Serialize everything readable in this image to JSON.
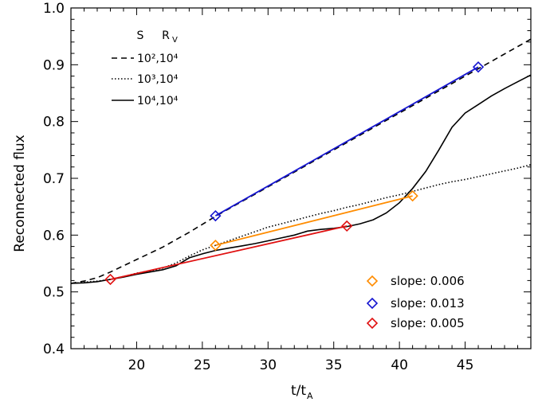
{
  "chart_data": {
    "type": "line",
    "title": "",
    "xlabel": "t/t",
    "xlabel_sub": "A",
    "ylabel": "Reconnected flux",
    "xlim": [
      15,
      50
    ],
    "ylim": [
      0.4,
      1.0
    ],
    "xticks": [
      20,
      25,
      30,
      35,
      40,
      45
    ],
    "yticks": [
      0.4,
      0.5,
      0.6,
      0.7,
      0.8,
      0.9,
      1.0
    ],
    "ytick_labels": [
      "0.4",
      "0.5",
      "0.6",
      "0.7",
      "0.8",
      "0.9",
      "1.0"
    ],
    "legend_header": {
      "s": "S",
      "r": "R",
      "r_sub": "V"
    },
    "series": [
      {
        "name": "10²,10⁴",
        "style": "dashed",
        "color": "#000000",
        "x": [
          15,
          16,
          17,
          18,
          19,
          20,
          21,
          22,
          23,
          24,
          25,
          26,
          27,
          28,
          29,
          30,
          31,
          32,
          33,
          34,
          35,
          36,
          37,
          38,
          39,
          40,
          41,
          42,
          43,
          44,
          45,
          46,
          47,
          48,
          49,
          50
        ],
        "y": [
          0.515,
          0.519,
          0.525,
          0.535,
          0.546,
          0.557,
          0.568,
          0.579,
          0.592,
          0.605,
          0.619,
          0.633,
          0.646,
          0.659,
          0.672,
          0.685,
          0.698,
          0.711,
          0.724,
          0.737,
          0.75,
          0.763,
          0.776,
          0.789,
          0.802,
          0.815,
          0.828,
          0.841,
          0.854,
          0.867,
          0.88,
          0.893,
          0.906,
          0.919,
          0.932,
          0.945
        ]
      },
      {
        "name": "10³,10⁴",
        "style": "dotted",
        "color": "#000000",
        "x": [
          15,
          16,
          17,
          18,
          19,
          20,
          21,
          22,
          23,
          24,
          25,
          26,
          27,
          28,
          29,
          30,
          31,
          32,
          33,
          34,
          35,
          36,
          37,
          38,
          39,
          40,
          41,
          42,
          43,
          44,
          45,
          46,
          47,
          48,
          49,
          50
        ],
        "y": [
          0.515,
          0.517,
          0.519,
          0.522,
          0.527,
          0.533,
          0.537,
          0.542,
          0.551,
          0.563,
          0.574,
          0.582,
          0.59,
          0.598,
          0.606,
          0.614,
          0.62,
          0.626,
          0.632,
          0.638,
          0.643,
          0.649,
          0.654,
          0.66,
          0.666,
          0.671,
          0.677,
          0.683,
          0.689,
          0.694,
          0.698,
          0.703,
          0.708,
          0.713,
          0.718,
          0.724
        ]
      },
      {
        "name": "10⁴,10⁴",
        "style": "solid",
        "color": "#000000",
        "x": [
          15,
          16,
          17,
          18,
          19,
          20,
          21,
          22,
          23,
          24,
          25,
          26,
          27,
          28,
          29,
          30,
          31,
          32,
          33,
          34,
          35,
          36,
          37,
          38,
          39,
          40,
          41,
          42,
          43,
          44,
          45,
          46,
          47,
          48,
          49,
          50
        ],
        "y": [
          0.515,
          0.516,
          0.518,
          0.522,
          0.526,
          0.531,
          0.535,
          0.539,
          0.546,
          0.56,
          0.567,
          0.573,
          0.577,
          0.581,
          0.585,
          0.59,
          0.595,
          0.6,
          0.607,
          0.61,
          0.612,
          0.615,
          0.62,
          0.627,
          0.639,
          0.657,
          0.682,
          0.712,
          0.75,
          0.79,
          0.815,
          0.83,
          0.845,
          0.858,
          0.87,
          0.882
        ]
      }
    ],
    "fits": [
      {
        "label": "slope: 0.006",
        "color": "#ff8c00",
        "x": [
          26,
          41
        ],
        "y": [
          0.582,
          0.669
        ]
      },
      {
        "label": "slope: 0.013",
        "color": "#1515d0",
        "x": [
          26,
          46
        ],
        "y": [
          0.634,
          0.896
        ]
      },
      {
        "label": "slope: 0.005",
        "color": "#e01010",
        "x": [
          18,
          36
        ],
        "y": [
          0.522,
          0.616
        ]
      }
    ]
  }
}
